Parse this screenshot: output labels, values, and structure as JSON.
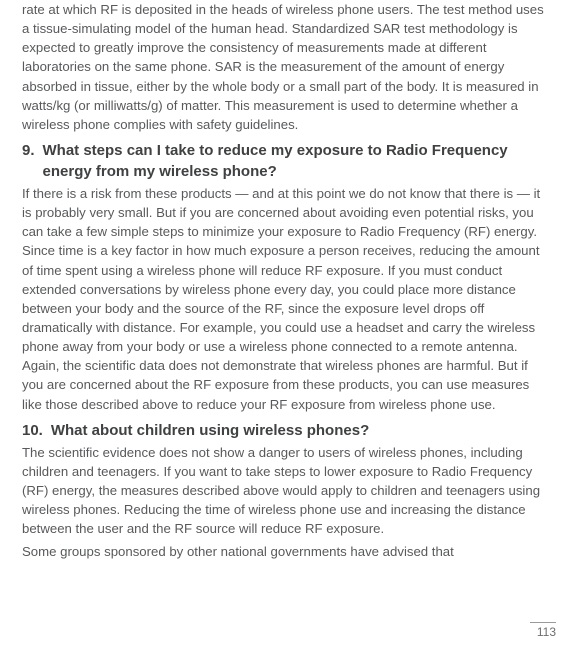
{
  "intro_paragraph": "rate at which RF is deposited in the heads of wireless phone users. The test method uses a tissue-simulating model of the human head. Standardized SAR test methodology is expected to greatly improve the consistency of measurements made at different laboratories on the same phone. SAR is the measurement of the amount of energy absorbed in tissue, either by the whole body or a small part of the body. It is measured in watts/kg (or milliwatts/g) of matter. This measurement is used to determine whether a wireless phone complies with safety guidelines.",
  "sections": [
    {
      "number": "9.",
      "title": "What steps can I take to reduce my exposure to Radio Frequency energy from my wireless phone?",
      "paragraphs": [
        "If there is a risk from these products — and at this point we do not know that there is — it is probably very small. But if you are concerned about avoiding even potential risks, you can take a few simple steps to minimize your exposure to Radio Frequency (RF) energy. Since time is a key factor in how much exposure a person receives, reducing the amount of time spent using a wireless phone will reduce RF exposure. If you must conduct extended conversations by wireless phone every day, you could place more distance between your body and the source of the RF, since the exposure level drops off dramatically with distance. For example, you could use a headset and carry the wireless phone away from your body or use a wireless phone connected to a remote antenna. Again, the scientific data does not demonstrate that wireless phones are harmful. But if you are concerned about the RF exposure from these products, you can use measures like those described above to reduce your RF exposure from wireless phone use."
      ]
    },
    {
      "number": "10.",
      "title": "What about children using wireless phones?",
      "paragraphs": [
        "The scientific evidence does not show a danger to users of wireless phones, including children and teenagers. If you want to take steps to lower exposure to Radio Frequency (RF) energy, the measures described above would apply to children and teenagers using wireless phones. Reducing the time of wireless phone use and increasing the distance between the user and the RF source will reduce RF exposure.",
        "Some groups sponsored by other national governments have advised that"
      ]
    }
  ],
  "page_number": "113"
}
